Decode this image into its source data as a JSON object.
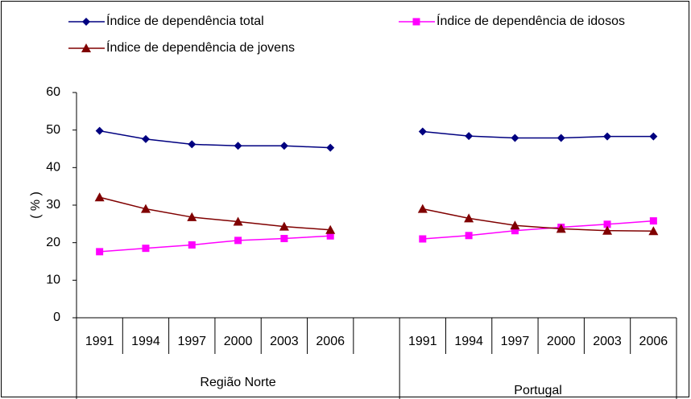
{
  "chart_data": {
    "type": "line",
    "y_label": "( % )",
    "categories": [
      "1991",
      "1994",
      "1997",
      "2000",
      "2003",
      "2006",
      null,
      "1991",
      "1994",
      "1997",
      "2000",
      "2003",
      "2006"
    ],
    "groups": [
      "Região Norte",
      "Portugal"
    ],
    "series": [
      {
        "name": "Índice de dependência total",
        "color": "#000080",
        "marker": "diamond",
        "values": [
          49.8,
          47.6,
          46.2,
          45.8,
          45.8,
          45.3,
          null,
          49.6,
          48.4,
          47.9,
          47.9,
          48.3,
          48.3
        ]
      },
      {
        "name": "Índice de dependência de idosos",
        "color": "#ff00ff",
        "marker": "square",
        "values": [
          17.6,
          18.5,
          19.4,
          20.6,
          21.1,
          21.8,
          null,
          21.0,
          21.9,
          23.2,
          24.1,
          24.9,
          25.8
        ]
      },
      {
        "name": "Índice de dependência de jovens",
        "color": "#800000",
        "marker": "triangle",
        "values": [
          32.1,
          29.0,
          26.8,
          25.6,
          24.3,
          23.4,
          null,
          29.0,
          26.5,
          24.6,
          23.7,
          23.2,
          23.1
        ]
      }
    ],
    "ylim": [
      0,
      60
    ],
    "yticks": [
      0,
      10,
      20,
      30,
      40,
      50,
      60
    ],
    "grid": false
  }
}
